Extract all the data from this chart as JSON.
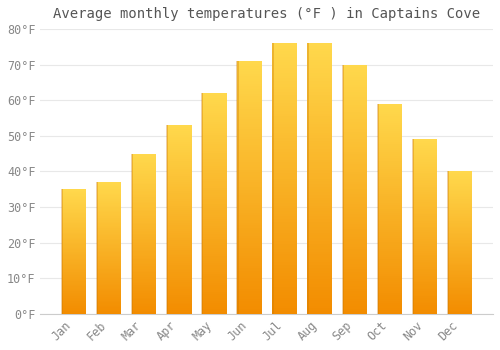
{
  "title": "Average monthly temperatures (°F ) in Captains Cove",
  "months": [
    "Jan",
    "Feb",
    "Mar",
    "Apr",
    "May",
    "Jun",
    "Jul",
    "Aug",
    "Sep",
    "Oct",
    "Nov",
    "Dec"
  ],
  "values": [
    35,
    37,
    45,
    53,
    62,
    71,
    76,
    76,
    70,
    59,
    49,
    40
  ],
  "bar_color_main": "#FFC200",
  "bar_color_light": "#FFD966",
  "bar_color_dark": "#E88C00",
  "ylim": [
    0,
    80
  ],
  "yticks": [
    0,
    10,
    20,
    30,
    40,
    50,
    60,
    70,
    80
  ],
  "ytick_labels": [
    "0°F",
    "10°F",
    "20°F",
    "30°F",
    "40°F",
    "50°F",
    "60°F",
    "70°F",
    "80°F"
  ],
  "background_color": "#FFFFFF",
  "grid_color": "#E8E8E8",
  "title_fontsize": 10,
  "tick_fontsize": 8.5,
  "font_family": "monospace",
  "tick_color": "#888888",
  "title_color": "#555555"
}
